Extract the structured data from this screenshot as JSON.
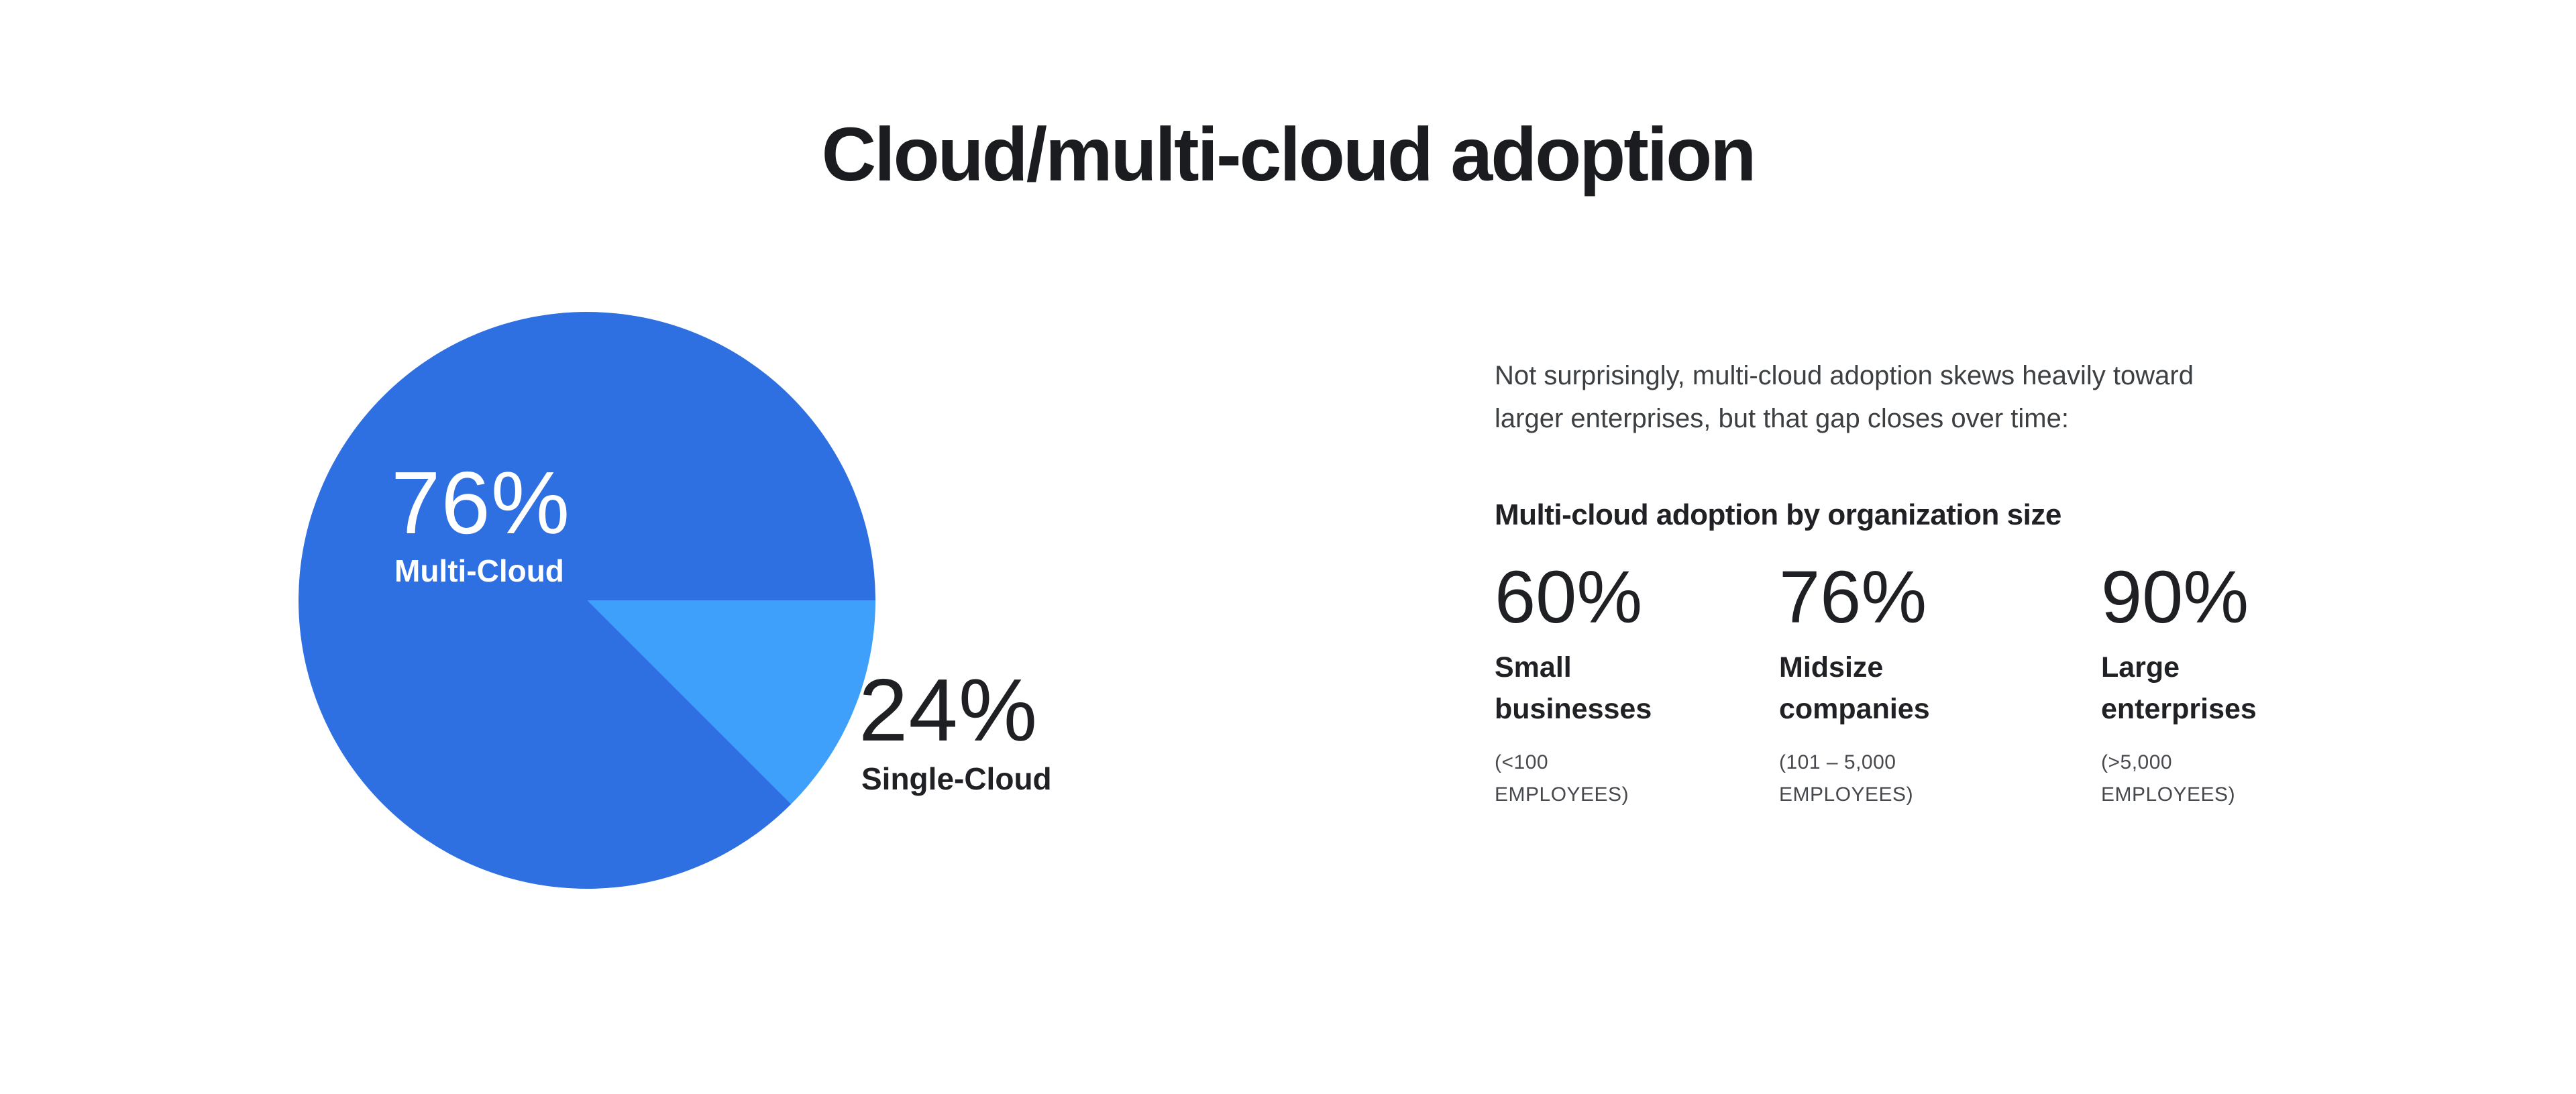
{
  "page": {
    "background": "#ffffff",
    "title": "Cloud/multi-cloud adoption"
  },
  "pie": {
    "inside_label": {
      "value": "76%",
      "name": "Multi-Cloud"
    },
    "outside_label": {
      "value": "24%",
      "name": "Single-Cloud"
    },
    "colors": {
      "multi_cloud": "#2e70e1",
      "single_cloud": "#3fa0fc"
    },
    "draw": {
      "single_slice_start_deg": 90,
      "single_slice_end_deg": 135
    }
  },
  "aside": {
    "paragraph_line1": "Not surprisingly, multi-cloud adoption skews heavily toward",
    "paragraph_line2": "larger enterprises, but that gap closes over time:",
    "heading": "Multi-cloud adoption by organization size",
    "stats": [
      {
        "value": "60%",
        "name_line1": "Small",
        "name_line2": "businesses",
        "sub_line1": "(<100",
        "sub_line2": "EMPLOYEES)"
      },
      {
        "value": "76%",
        "name_line1": "Midsize",
        "name_line2": "companies",
        "sub_line1": "(101 – 5,000",
        "sub_line2": "EMPLOYEES)"
      },
      {
        "value": "90%",
        "name_line1": "Large",
        "name_line2": "enterprises",
        "sub_line1": "(>5,000",
        "sub_line2": "EMPLOYEES)"
      }
    ]
  },
  "chart_data": [
    {
      "type": "pie",
      "title": "Cloud/multi-cloud adoption",
      "slices": [
        {
          "label": "Multi-Cloud",
          "value": 76,
          "color": "#2e70e1",
          "label_color": "#ffffff",
          "label_position": "inside"
        },
        {
          "label": "Single-Cloud",
          "value": 24,
          "color": "#3fa0fc",
          "label_color": "#1f2023",
          "label_position": "outside-right"
        }
      ],
      "legend_position": "none",
      "notes": "Slice for Single-Cloud is drawn from 3 o'clock sweeping 45 degrees clockwise (stylized, not proportional to 24%)."
    },
    {
      "type": "table",
      "title": "Multi-cloud adoption by organization size",
      "categories": [
        "Small businesses (<100 employees)",
        "Midsize companies (101 – 5,000 employees)",
        "Large enterprises (>5,000 employees)"
      ],
      "values": [
        60,
        76,
        90
      ],
      "unit": "%"
    }
  ]
}
